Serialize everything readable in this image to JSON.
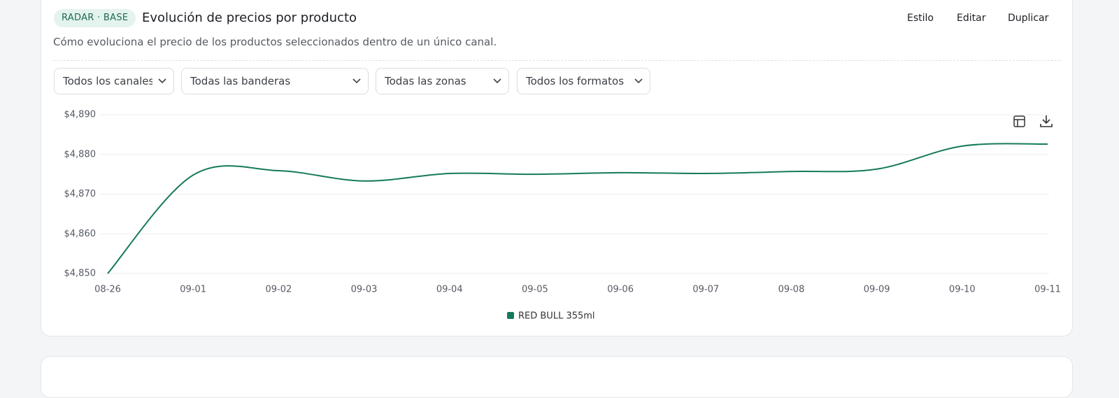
{
  "header": {
    "badge": "RADAR · BASE",
    "title": "Evolución de precios por producto",
    "actions": [
      "Estilo",
      "Editar",
      "Duplicar"
    ],
    "subtitle": "Cómo evoluciona el precio de los productos seleccionados dentro de un único canal."
  },
  "filters": [
    "Todos los canales",
    "Todas las banderas",
    "Todas las zonas",
    "Todos los formatos"
  ],
  "chart_data": {
    "type": "line",
    "categories": [
      "08-26",
      "09-01",
      "09-02",
      "09-03",
      "09-04",
      "09-05",
      "09-06",
      "09-07",
      "09-08",
      "09-09",
      "09-10",
      "09-11"
    ],
    "series": [
      {
        "name": "RED BULL 355ml",
        "color": "#157a5c",
        "values": [
          4850,
          4874.8,
          4875.9,
          4873.3,
          4875.2,
          4875.0,
          4875.4,
          4875.2,
          4875.7,
          4876.3,
          4882.1,
          4882.6
        ]
      }
    ],
    "ylim": [
      4850,
      4890
    ],
    "yticks": [
      {
        "value": 4850,
        "label": "$4,850"
      },
      {
        "value": 4860,
        "label": "$4,860"
      },
      {
        "value": 4870,
        "label": "$4,870"
      },
      {
        "value": 4880,
        "label": "$4,880"
      },
      {
        "value": 4890,
        "label": "$4,890"
      }
    ],
    "grid": true
  }
}
